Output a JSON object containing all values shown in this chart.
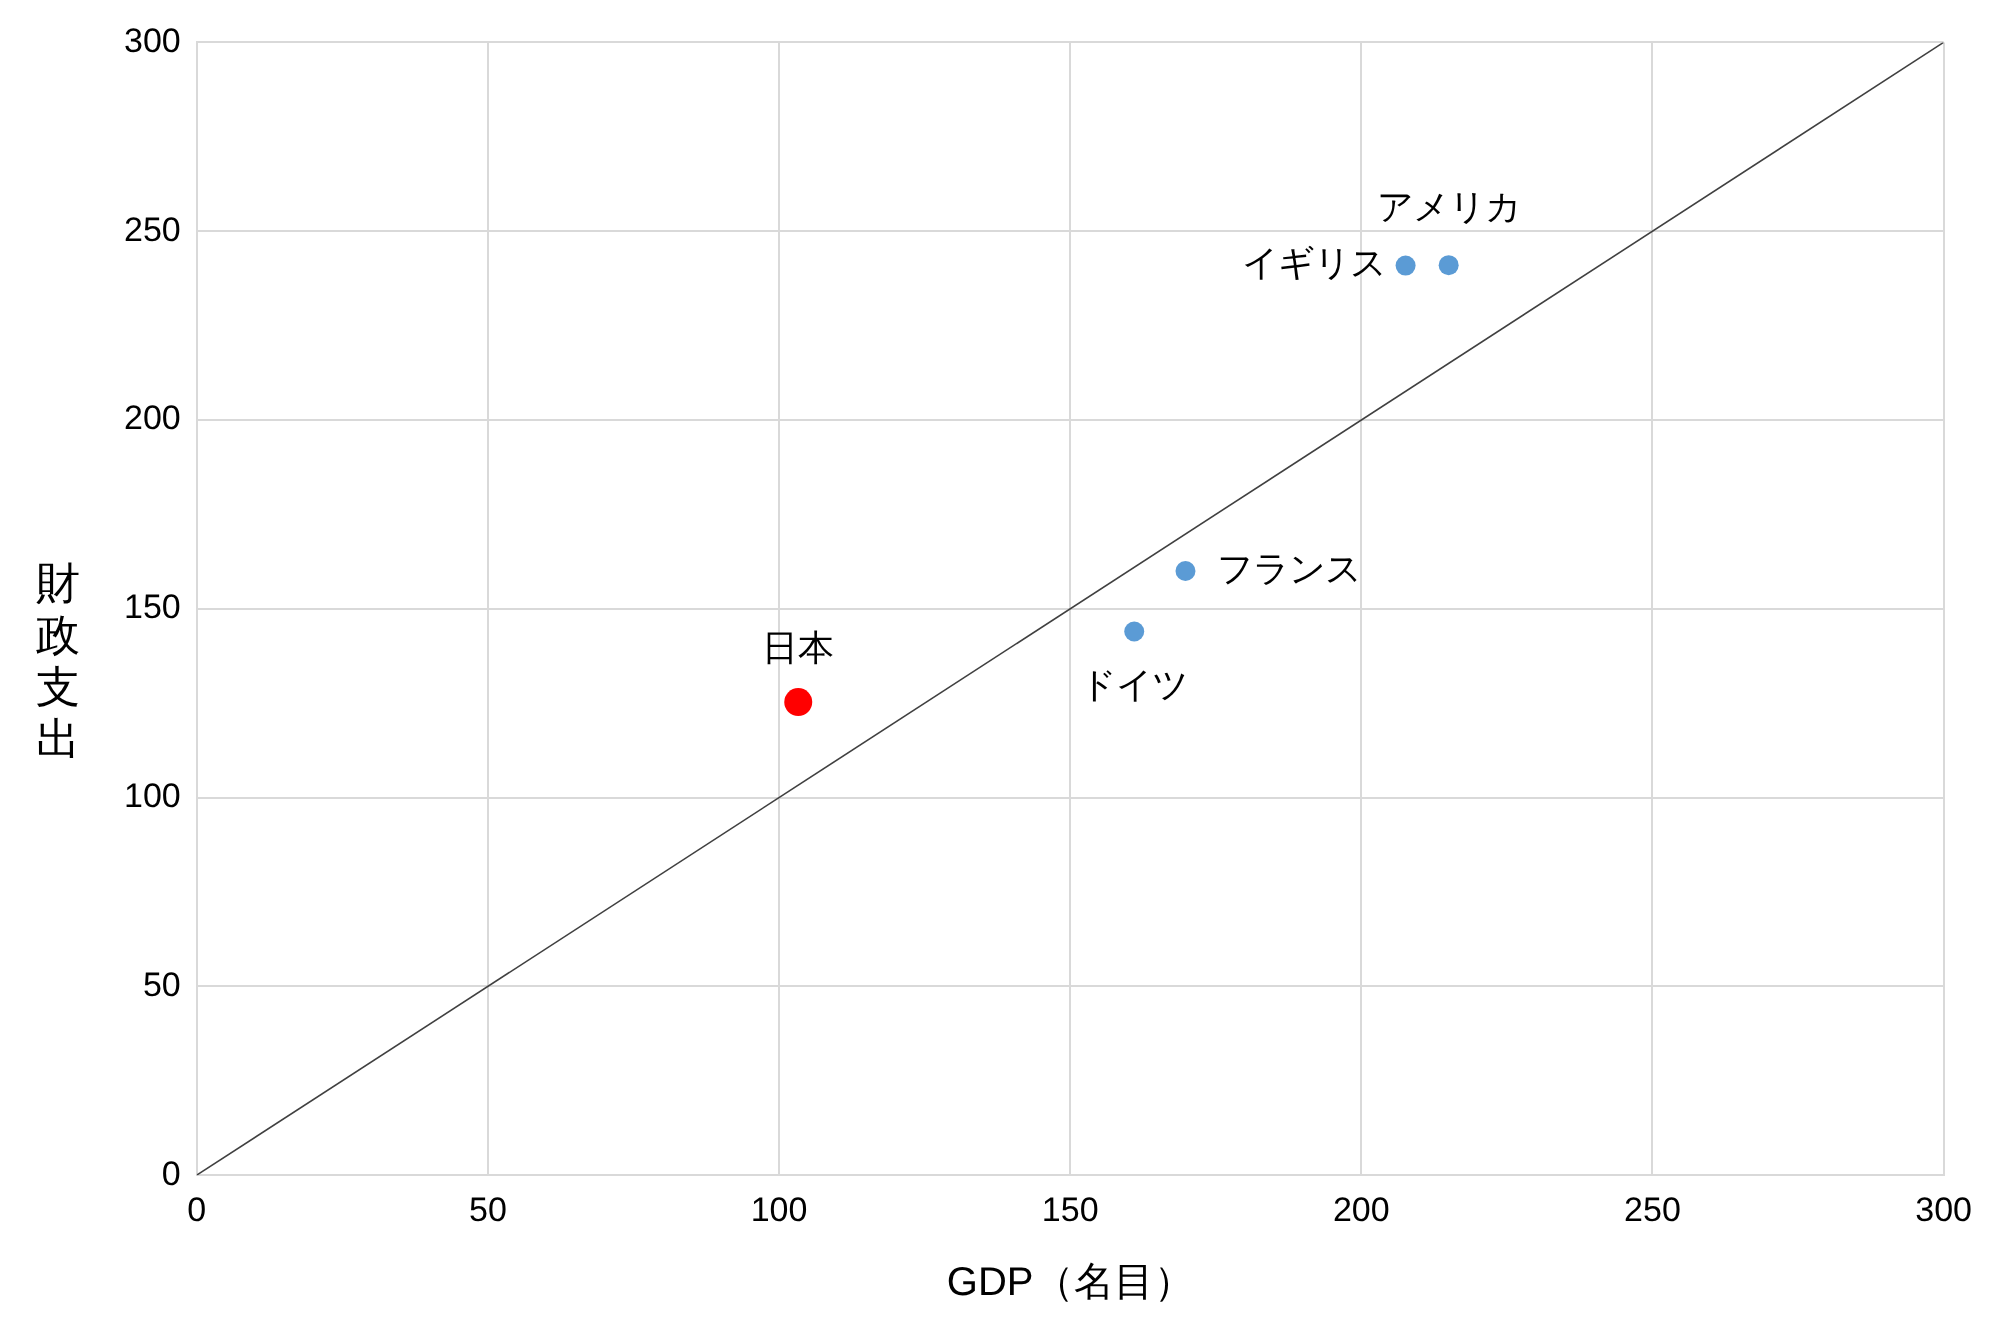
{
  "chart_data": {
    "type": "scatter",
    "xlabel": "GDP（名目）",
    "ylabel": "財政支出",
    "series": [
      {
        "type": "line",
        "color": "#404040",
        "x": [
          0,
          300
        ],
        "values": [
          0,
          300
        ],
        "marker": "none"
      },
      {
        "color": "#ff0000",
        "x": [
          103.3
        ],
        "values": [
          125.3
        ]
      },
      {
        "color": "#5b9bd5",
        "x": [
          161,
          169.8,
          207.6,
          215
        ],
        "values": [
          144,
          160,
          240.9,
          241
        ]
      }
    ],
    "annotations": [
      {
        "text": "日本",
        "x": 103.3,
        "y": 125.3
      },
      {
        "text": "ドイツ",
        "x": 161,
        "y": 144
      },
      {
        "text": "フランス",
        "x": 169.8,
        "y": 160
      },
      {
        "text": "イギリス",
        "x": 207.6,
        "y": 240.9
      },
      {
        "text": "アメリカ",
        "x": 215,
        "y": 241
      }
    ],
    "xlim": [
      0,
      300
    ],
    "ylim": [
      0,
      300
    ],
    "xticks": [
      0,
      50,
      100,
      150,
      200,
      250,
      300
    ],
    "yticks": [
      0,
      50,
      100,
      150,
      200,
      250,
      300
    ],
    "grid": true,
    "legend": false,
    "marker": "circle"
  }
}
